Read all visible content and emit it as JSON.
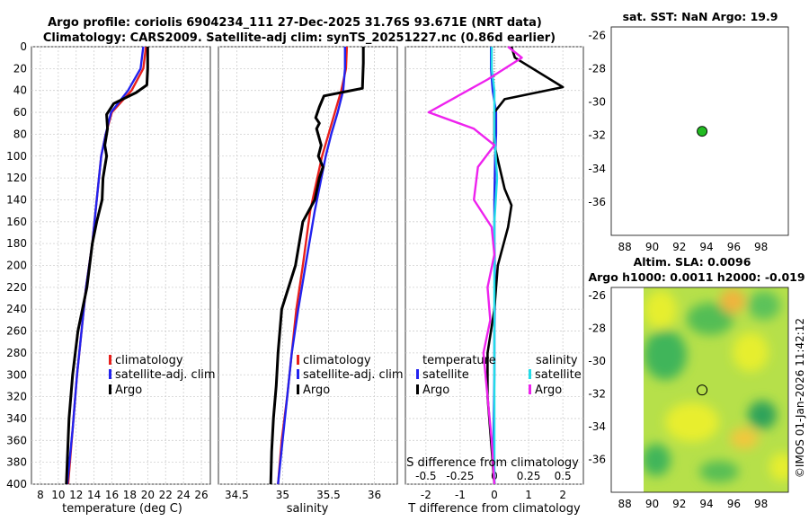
{
  "titles": {
    "line1": "Argo profile: coriolis 6904234_111 27-Dec-2025 31.76S 93.671E (NRT data)",
    "line2": "Climatology: CARS2009. Satellite-adj clim: synTS_20251227.nc (0.86d earlier)",
    "sst_map": "sat. SST: NaN Argo: 19.9",
    "sla_map_1": "Altim. SLA: 0.0096",
    "sla_map_2": "Argo h1000: 0.0011 h2000: -0.019",
    "imos_stamp": "©IMOS 01-Jan-2026 11:42:12"
  },
  "colors": {
    "climatology": "#e8201c",
    "satellite": "#2222ee",
    "argo": "#000000",
    "sat_salinity": "#22dde8",
    "argo_salinity": "#ee22ee",
    "sst_dot": "#22bb22"
  },
  "chart_data": [
    {
      "type": "line",
      "name": "temperature-panel",
      "xlabel": "temperature (deg C)",
      "ylabel": "",
      "xlim": [
        7,
        27
      ],
      "ylim": [
        400,
        0
      ],
      "xticks": [
        8,
        10,
        12,
        14,
        16,
        18,
        20,
        22,
        24,
        26
      ],
      "yticks": [
        0,
        20,
        40,
        60,
        80,
        100,
        120,
        140,
        160,
        180,
        200,
        220,
        240,
        260,
        280,
        300,
        320,
        340,
        360,
        380,
        400
      ],
      "legend": [
        "climatology",
        "satellite-adj. clim",
        "Argo"
      ],
      "series": [
        {
          "name": "climatology",
          "x": [
            19.8,
            19.5,
            18.2,
            16.0,
            15.3,
            14.8,
            14.3,
            13.8,
            13.1,
            12.6,
            12.1,
            11.6,
            11.1
          ],
          "y": [
            0,
            20,
            40,
            60,
            80,
            100,
            140,
            180,
            220,
            260,
            300,
            350,
            400
          ]
        },
        {
          "name": "satellite-adj. clim",
          "x": [
            19.5,
            19.2,
            17.8,
            15.9,
            15.3,
            14.8,
            14.3,
            13.8,
            13.1,
            12.6,
            12.1,
            11.6,
            11.0
          ],
          "y": [
            0,
            20,
            40,
            60,
            80,
            100,
            140,
            180,
            220,
            260,
            300,
            350,
            400
          ]
        },
        {
          "name": "Argo",
          "x": [
            20.0,
            20.0,
            19.9,
            18.7,
            16.2,
            15.4,
            15.5,
            15.2,
            15.4,
            15.0,
            14.9,
            14.3,
            13.8,
            13.2,
            12.2,
            11.6,
            11.2,
            11.0,
            10.9
          ],
          "y": [
            0,
            20,
            35,
            42,
            52,
            62,
            75,
            90,
            100,
            120,
            140,
            160,
            180,
            220,
            260,
            300,
            340,
            380,
            400
          ]
        }
      ]
    },
    {
      "type": "line",
      "name": "salinity-panel",
      "xlabel": "salinity",
      "xlim": [
        34.3,
        36.25
      ],
      "ylim": [
        400,
        0
      ],
      "xticks": [
        34.5,
        35,
        35.5,
        36
      ],
      "legend": [
        "climatology",
        "satellite-adj. clim",
        "Argo"
      ],
      "series": [
        {
          "name": "climatology",
          "x": [
            35.7,
            35.69,
            35.64,
            35.57,
            35.5,
            35.43,
            35.3,
            35.22,
            35.15,
            35.1,
            35.05,
            34.99,
            34.95
          ],
          "y": [
            0,
            20,
            40,
            60,
            80,
            100,
            150,
            200,
            240,
            280,
            320,
            360,
            400
          ]
        },
        {
          "name": "satellite-adj. clim",
          "x": [
            35.68,
            35.68,
            35.66,
            35.6,
            35.53,
            35.47,
            35.35,
            35.25,
            35.17,
            35.1,
            35.05,
            35.0,
            34.95
          ],
          "y": [
            0,
            20,
            40,
            60,
            80,
            100,
            150,
            200,
            240,
            280,
            320,
            360,
            400
          ]
        },
        {
          "name": "Argo",
          "x": [
            35.88,
            35.88,
            35.87,
            35.45,
            35.4,
            35.36,
            35.4,
            35.37,
            35.42,
            35.39,
            35.44,
            35.4,
            35.35,
            35.22,
            35.14,
            34.99,
            34.95,
            34.93,
            34.9,
            34.88,
            34.87
          ],
          "y": [
            0,
            15,
            38,
            45,
            55,
            65,
            70,
            75,
            90,
            100,
            110,
            120,
            140,
            160,
            200,
            240,
            280,
            310,
            340,
            370,
            400
          ]
        }
      ]
    },
    {
      "type": "line",
      "name": "difference-panel",
      "xlabel": "T difference from climatology",
      "top_label": "S difference from climatology",
      "xlim": [
        -2.6,
        2.6
      ],
      "ylim": [
        400,
        0
      ],
      "xticks": [
        -2,
        -1,
        0,
        1,
        2
      ],
      "top_ticks": [
        -0.5,
        -0.25,
        0,
        0.25,
        0.5
      ],
      "legend_temperature_title": "temperature",
      "legend_salinity_title": "salinity",
      "legend_left": [
        "satellite",
        "Argo"
      ],
      "legend_right": [
        "satellite",
        "Argo"
      ],
      "series": [
        {
          "name": "T satellite",
          "x": [
            -0.1,
            -0.1,
            -0.05,
            0.05,
            0.05,
            0.02,
            0.0,
            0.0,
            0.02,
            0.0,
            0.0,
            -0.02,
            0.0
          ],
          "y": [
            0,
            20,
            40,
            60,
            80,
            100,
            140,
            180,
            220,
            260,
            300,
            350,
            400
          ]
        },
        {
          "name": "T Argo",
          "x": [
            0.5,
            0.6,
            2.0,
            0.3,
            0.0,
            0.0,
            0.3,
            0.5,
            0.4,
            0.1,
            0.0,
            -0.2,
            -0.2,
            -0.1,
            0.0
          ],
          "y": [
            0,
            10,
            37,
            48,
            60,
            90,
            130,
            145,
            165,
            200,
            240,
            280,
            320,
            360,
            400
          ]
        },
        {
          "name": "S satellite",
          "x": [
            -0.02,
            -0.02,
            0.0,
            0.0,
            0.02,
            0.0,
            0.0,
            0.0,
            0.0,
            0.0,
            0.0
          ],
          "y": [
            0,
            20,
            40,
            80,
            120,
            160,
            200,
            250,
            300,
            350,
            400
          ]
        },
        {
          "name": "S Argo",
          "x": [
            0.1,
            0.2,
            -0.05,
            -0.48,
            -0.15,
            0.0,
            -0.12,
            -0.15,
            -0.02,
            0.0,
            -0.05,
            -0.03,
            -0.08,
            -0.05,
            -0.02,
            0.0
          ],
          "y": [
            0,
            10,
            30,
            60,
            75,
            90,
            110,
            140,
            165,
            190,
            220,
            250,
            280,
            320,
            360,
            400
          ]
        }
      ]
    },
    {
      "type": "scatter",
      "name": "sst-map",
      "xlim": [
        87,
        100
      ],
      "ylim": [
        -38,
        -25.5
      ],
      "xticks": [
        88,
        90,
        92,
        94,
        96,
        98
      ],
      "yticks": [
        -26,
        -28,
        -30,
        -32,
        -34,
        -36
      ],
      "points": [
        {
          "lon": 93.67,
          "lat": -31.76,
          "label": "Argo"
        }
      ]
    },
    {
      "type": "heatmap",
      "name": "sla-map",
      "xlim": [
        87,
        100
      ],
      "ylim": [
        -38,
        -25.5
      ],
      "xticks": [
        88,
        90,
        92,
        94,
        96,
        98
      ],
      "yticks": [
        -26,
        -28,
        -30,
        -32,
        -34,
        -36
      ],
      "data_lon_range": [
        90,
        100
      ],
      "points": [
        {
          "lon": 93.67,
          "lat": -31.76,
          "label": "Argo"
        }
      ]
    }
  ]
}
